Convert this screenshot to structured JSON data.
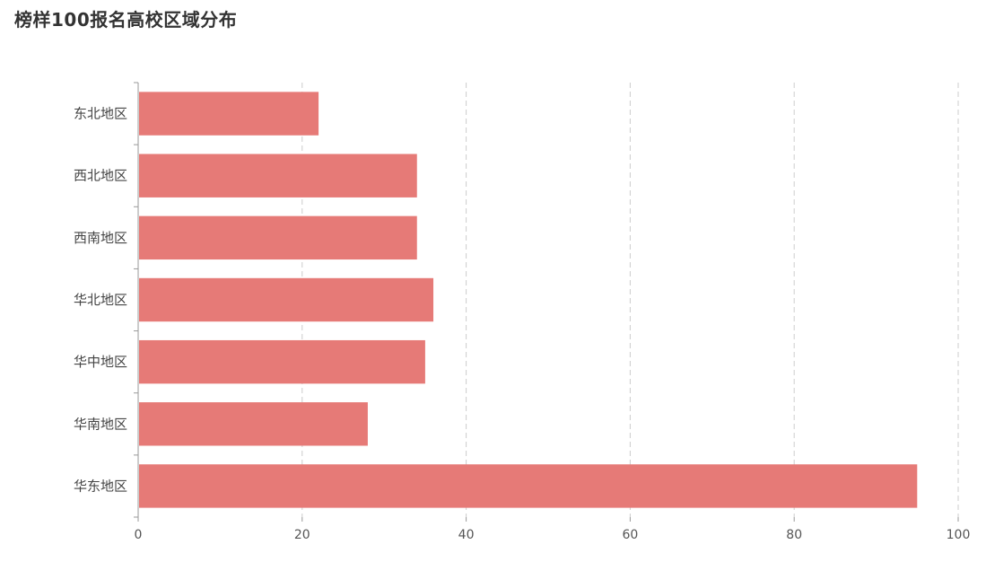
{
  "chart_data": {
    "type": "bar",
    "orientation": "horizontal",
    "title": "榜样100报名高校区域分布",
    "categories": [
      "东北地区",
      "西北地区",
      "西南地区",
      "华北地区",
      "华中地区",
      "华南地区",
      "华东地区"
    ],
    "values": [
      22,
      34,
      34,
      36,
      35,
      28,
      95
    ],
    "xlim": [
      0,
      100
    ],
    "x_ticks": [
      "0",
      "20",
      "40",
      "60",
      "80",
      "100"
    ],
    "xlabel": "",
    "ylabel": "",
    "grid": true,
    "bar_color": "#e67a77"
  }
}
